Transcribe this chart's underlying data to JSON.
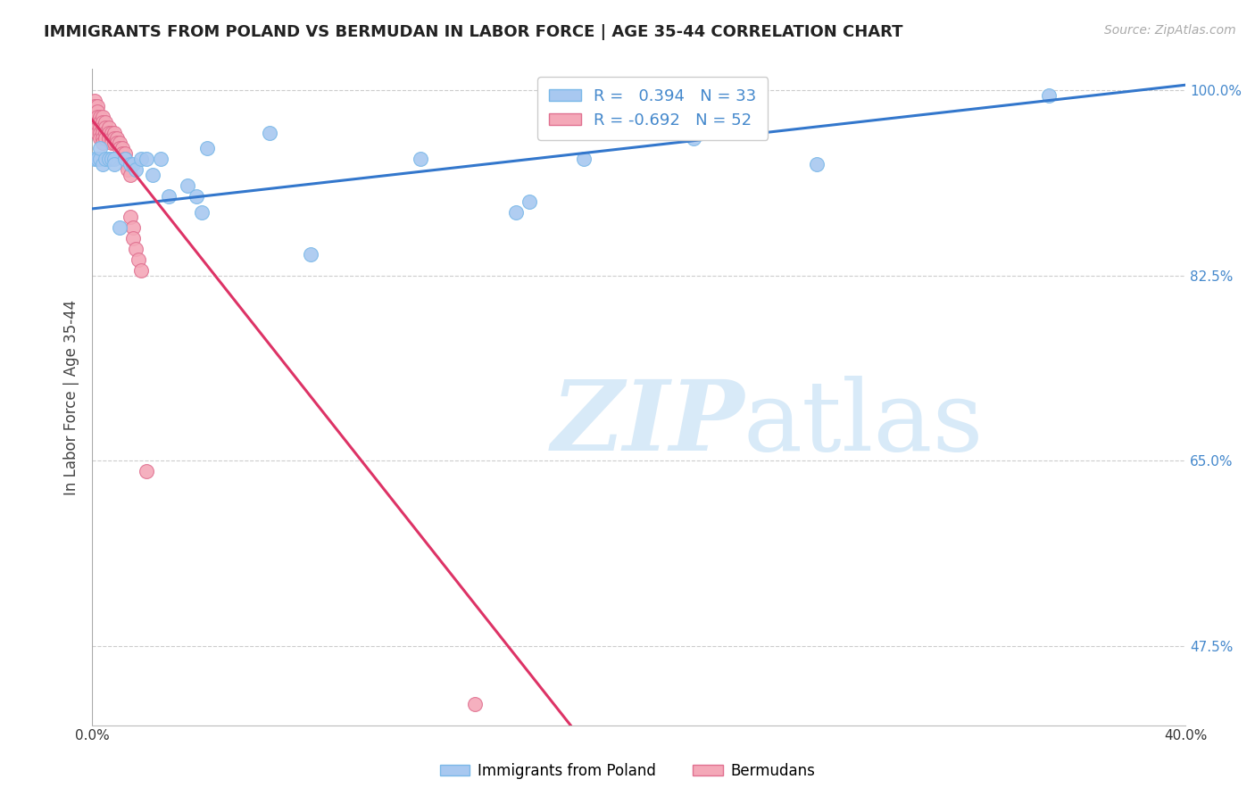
{
  "title": "IMMIGRANTS FROM POLAND VS BERMUDAN IN LABOR FORCE | AGE 35-44 CORRELATION CHART",
  "source": "Source: ZipAtlas.com",
  "ylabel": "In Labor Force | Age 35-44",
  "xlim": [
    0.0,
    0.4
  ],
  "ylim": [
    0.4,
    1.02
  ],
  "xticks": [
    0.0,
    0.05,
    0.1,
    0.15,
    0.2,
    0.25,
    0.3,
    0.35,
    0.4
  ],
  "xtick_labels": [
    "0.0%",
    "",
    "",
    "",
    "",
    "",
    "",
    "",
    "40.0%"
  ],
  "ytick_vals": [
    0.475,
    0.65,
    0.825,
    1.0
  ],
  "ytick_labs": [
    "47.5%",
    "65.0%",
    "82.5%",
    "100.0%"
  ],
  "poland_color": "#a8c8f0",
  "poland_edge_color": "#7ab8e8",
  "bermudan_color": "#f4a8b8",
  "bermudan_edge_color": "#e07090",
  "trend_poland_color": "#3377cc",
  "trend_bermudan_color": "#dd3366",
  "R_poland": 0.394,
  "N_poland": 33,
  "R_bermudan": -0.692,
  "N_bermudan": 52,
  "poland_x": [
    0.001,
    0.002,
    0.003,
    0.003,
    0.004,
    0.005,
    0.006,
    0.007,
    0.008,
    0.008,
    0.01,
    0.012,
    0.014,
    0.015,
    0.016,
    0.018,
    0.02,
    0.022,
    0.025,
    0.028,
    0.035,
    0.038,
    0.04,
    0.042,
    0.065,
    0.08,
    0.12,
    0.155,
    0.16,
    0.18,
    0.22,
    0.265,
    0.35
  ],
  "poland_y": [
    0.935,
    0.935,
    0.935,
    0.945,
    0.93,
    0.935,
    0.935,
    0.935,
    0.935,
    0.93,
    0.87,
    0.935,
    0.93,
    0.93,
    0.925,
    0.935,
    0.935,
    0.92,
    0.935,
    0.9,
    0.91,
    0.9,
    0.885,
    0.945,
    0.96,
    0.845,
    0.935,
    0.885,
    0.895,
    0.935,
    0.955,
    0.93,
    0.995
  ],
  "bermudan_x": [
    0.001,
    0.001,
    0.001,
    0.002,
    0.002,
    0.002,
    0.002,
    0.002,
    0.002,
    0.003,
    0.003,
    0.003,
    0.003,
    0.003,
    0.004,
    0.004,
    0.004,
    0.004,
    0.004,
    0.004,
    0.005,
    0.005,
    0.005,
    0.005,
    0.006,
    0.006,
    0.006,
    0.007,
    0.007,
    0.007,
    0.008,
    0.008,
    0.008,
    0.009,
    0.009,
    0.01,
    0.01,
    0.011,
    0.011,
    0.012,
    0.012,
    0.013,
    0.013,
    0.014,
    0.014,
    0.015,
    0.015,
    0.016,
    0.017,
    0.018,
    0.02,
    0.14
  ],
  "bermudan_y": [
    0.99,
    0.985,
    0.975,
    0.985,
    0.98,
    0.975,
    0.97,
    0.965,
    0.96,
    0.975,
    0.97,
    0.965,
    0.96,
    0.955,
    0.975,
    0.97,
    0.965,
    0.96,
    0.955,
    0.95,
    0.97,
    0.965,
    0.96,
    0.955,
    0.965,
    0.96,
    0.955,
    0.96,
    0.955,
    0.95,
    0.96,
    0.955,
    0.95,
    0.955,
    0.95,
    0.95,
    0.945,
    0.945,
    0.94,
    0.94,
    0.935,
    0.93,
    0.925,
    0.92,
    0.88,
    0.87,
    0.86,
    0.85,
    0.84,
    0.83,
    0.64,
    0.42
  ],
  "trend_poland_x0": 0.0,
  "trend_poland_x1": 0.4,
  "trend_poland_y0": 0.888,
  "trend_poland_y1": 1.005,
  "trend_bermudan_x0": 0.0,
  "trend_bermudan_x1": 0.175,
  "trend_bermudan_y0": 0.972,
  "trend_bermudan_y1": 0.4
}
